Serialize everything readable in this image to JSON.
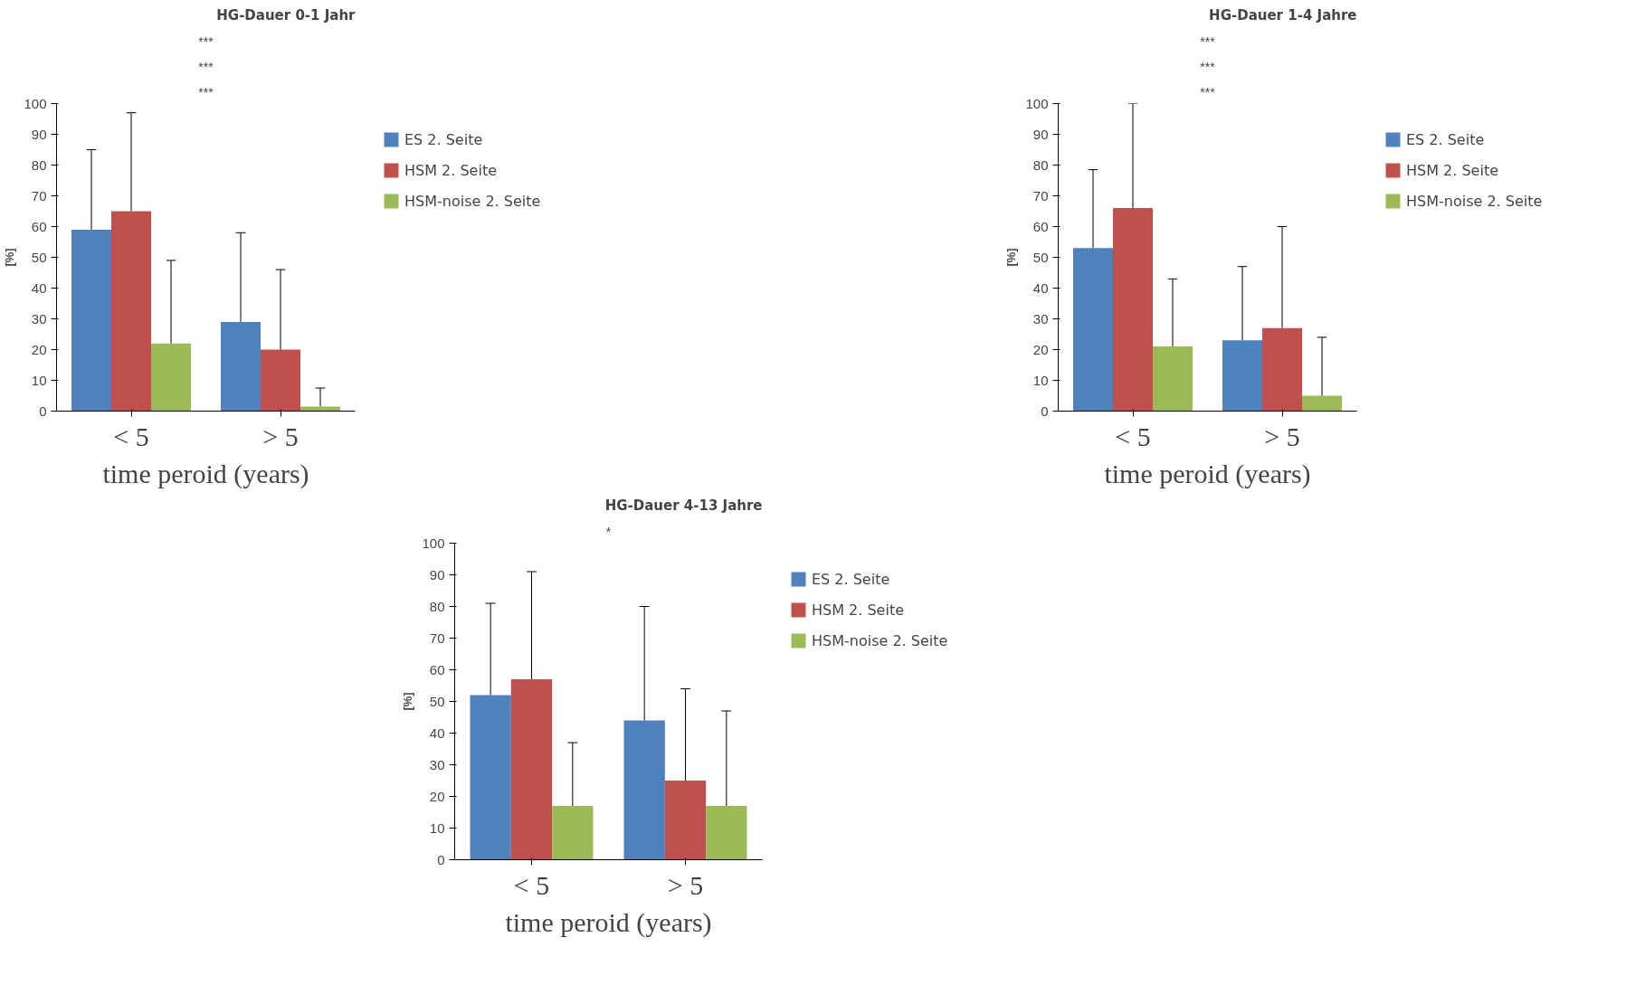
{
  "chart_data": [
    {
      "type": "bar",
      "title": "HG-Dauer 0-1 Jahr",
      "xlabel": "time peroid (years)",
      "ylabel": "[%]",
      "categories": [
        "< 5",
        "> 5"
      ],
      "ylim": [
        0,
        100
      ],
      "yticks": [
        0,
        10,
        20,
        30,
        40,
        50,
        60,
        70,
        80,
        90,
        100
      ],
      "grid": false,
      "legend": "right",
      "annotations": [
        "***",
        "***",
        "***"
      ],
      "series": [
        {
          "name": "ES 2. Seite",
          "color": "#4f81bd",
          "values": [
            59,
            29
          ],
          "errors": [
            [
              59,
              85
            ],
            [
              29,
              58
            ]
          ]
        },
        {
          "name": "HSM 2. Seite",
          "color": "#c0504d",
          "values": [
            65,
            20
          ],
          "errors": [
            [
              65,
              97
            ],
            [
              20,
              46
            ]
          ]
        },
        {
          "name": "HSM-noise 2. Seite",
          "color": "#9bbb59",
          "values": [
            22,
            1.5
          ],
          "errors": [
            [
              22,
              49
            ],
            [
              1.5,
              7.5
            ]
          ]
        }
      ]
    },
    {
      "type": "bar",
      "title": "HG-Dauer 1-4 Jahre",
      "xlabel": "time peroid (years)",
      "ylabel": "[%]",
      "categories": [
        "< 5",
        "> 5"
      ],
      "ylim": [
        0,
        100
      ],
      "yticks": [
        0,
        10,
        20,
        30,
        40,
        50,
        60,
        70,
        80,
        90,
        100
      ],
      "grid": false,
      "legend": "right",
      "annotations": [
        "***",
        "***",
        "***"
      ],
      "series": [
        {
          "name": "ES 2. Seite",
          "color": "#4f81bd",
          "values": [
            53,
            23
          ],
          "errors": [
            [
              53,
              78.5
            ],
            [
              23,
              47
            ]
          ]
        },
        {
          "name": "HSM 2. Seite",
          "color": "#c0504d",
          "values": [
            66,
            27
          ],
          "errors": [
            [
              66,
              100
            ],
            [
              27,
              60
            ]
          ]
        },
        {
          "name": "HSM-noise 2. Seite",
          "color": "#9bbb59",
          "values": [
            21,
            5
          ],
          "errors": [
            [
              21,
              43
            ],
            [
              5,
              24
            ]
          ]
        }
      ]
    },
    {
      "type": "bar",
      "title": "HG-Dauer 4-13 Jahre",
      "xlabel": "time peroid (years)",
      "ylabel": "[%]",
      "categories": [
        "< 5",
        "> 5"
      ],
      "ylim": [
        0,
        100
      ],
      "yticks": [
        0,
        10,
        20,
        30,
        40,
        50,
        60,
        70,
        80,
        90,
        100
      ],
      "grid": false,
      "legend": "right",
      "annotations": [
        "*"
      ],
      "series": [
        {
          "name": "ES 2. Seite",
          "color": "#4f81bd",
          "values": [
            52,
            44
          ],
          "errors": [
            [
              52,
              81
            ],
            [
              44,
              80
            ]
          ]
        },
        {
          "name": "HSM 2. Seite",
          "color": "#c0504d",
          "values": [
            57,
            25
          ],
          "errors": [
            [
              57,
              91
            ],
            [
              25,
              54
            ]
          ]
        },
        {
          "name": "HSM-noise 2. Seite",
          "color": "#9bbb59",
          "values": [
            17,
            17
          ],
          "errors": [
            [
              17,
              37
            ],
            [
              17,
              47
            ]
          ]
        }
      ]
    }
  ]
}
